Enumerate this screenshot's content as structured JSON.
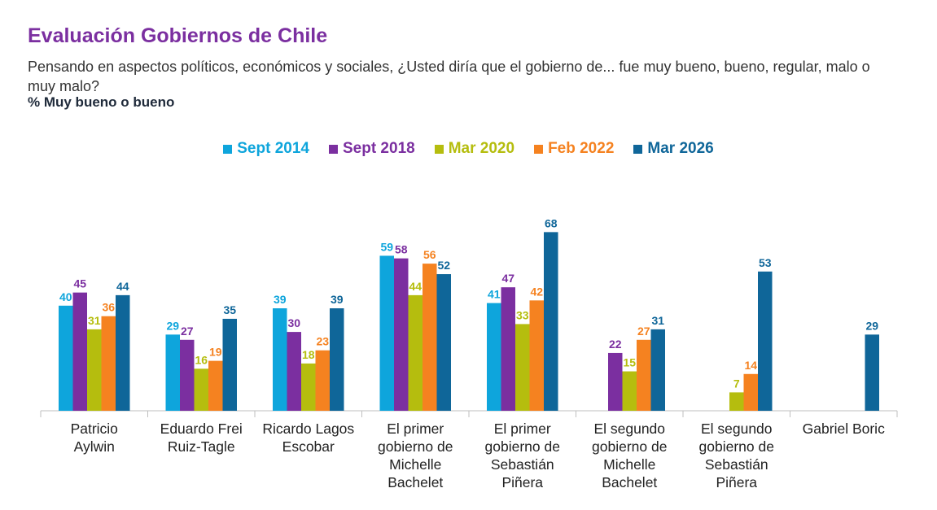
{
  "header": {
    "title": "Evaluación Gobiernos de Chile",
    "subtitle": "Pensando en aspectos políticos, económicos y sociales, ¿Usted diría que el gobierno de... fue muy bueno, bueno, regular, malo o muy malo?",
    "measure": "% Muy bueno o bueno"
  },
  "chart_data": {
    "type": "bar",
    "title": "Evaluación Gobiernos de Chile",
    "ylabel": "% Muy bueno o bueno",
    "xlabel": "",
    "ylim": [
      0,
      75
    ],
    "grid": false,
    "legend_position": "top-center",
    "categories": [
      [
        "Patricio",
        "Aylwin"
      ],
      [
        "Eduardo Frei",
        "Ruiz-Tagle"
      ],
      [
        "Ricardo Lagos",
        "Escobar"
      ],
      [
        "El primer",
        "gobierno de",
        "Michelle",
        "Bachelet"
      ],
      [
        "El primer",
        "gobierno de",
        "Sebastián",
        "Piñera"
      ],
      [
        "El segundo",
        "gobierno de",
        "Michelle",
        "Bachelet"
      ],
      [
        "El segundo",
        "gobierno de",
        "Sebastián",
        "Piñera"
      ],
      [
        "Gabriel Boric"
      ]
    ],
    "series": [
      {
        "name": "Sept 2014",
        "color": "#0ea5dc",
        "values": [
          40,
          29,
          39,
          59,
          41,
          null,
          null,
          null
        ]
      },
      {
        "name": "Sept 2018",
        "color": "#7b2fa0",
        "values": [
          45,
          27,
          30,
          58,
          47,
          22,
          null,
          null
        ]
      },
      {
        "name": "Mar 2020",
        "color": "#b5bd0e",
        "values": [
          31,
          16,
          18,
          44,
          33,
          15,
          7,
          null
        ]
      },
      {
        "name": "Feb 2022",
        "color": "#f58220",
        "values": [
          36,
          19,
          23,
          56,
          42,
          27,
          14,
          null
        ]
      },
      {
        "name": "Mar 2026",
        "color": "#0f6699",
        "values": [
          44,
          35,
          39,
          52,
          68,
          31,
          53,
          29
        ]
      }
    ]
  }
}
